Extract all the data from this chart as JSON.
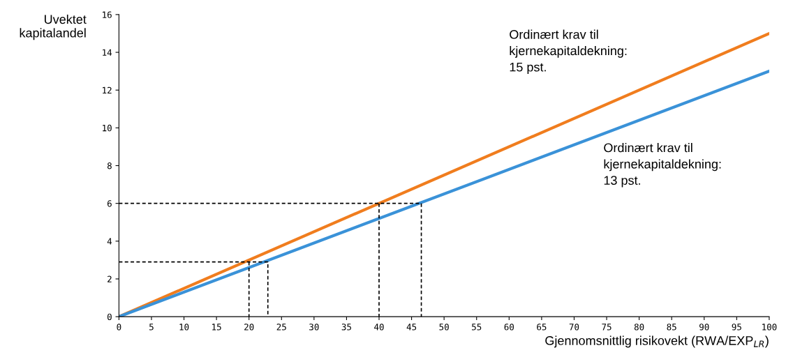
{
  "chart_data": {
    "type": "line",
    "xlabel": "Gjennomsnittlig risikovekt (RWA/EXP$_{LR}$)",
    "ylabel": "Uvektet\nkapitalandel",
    "xlim": [
      0,
      100
    ],
    "xticks": [
      0,
      5,
      10,
      15,
      20,
      25,
      30,
      35,
      40,
      45,
      50,
      55,
      60,
      65,
      70,
      75,
      80,
      85,
      90,
      95,
      100
    ],
    "ylim": [
      0,
      16
    ],
    "yticks": [
      0,
      2,
      4,
      6,
      8,
      10,
      12,
      14,
      16
    ],
    "grid": false,
    "legend": false,
    "marker": "none",
    "series": [
      {
        "color": "#f07d1e",
        "x": [
          0,
          100
        ],
        "values": [
          0,
          15
        ],
        "line_style": "solid"
      },
      {
        "color": "#3a92d8",
        "x": [
          0,
          100
        ],
        "values": [
          0,
          13
        ],
        "line_style": "solid"
      },
      {
        "color": "#000000",
        "x": [
          0,
          46.5,
          46.5
        ],
        "values": [
          6,
          6,
          0
        ],
        "line_style": "dashed"
      },
      {
        "color": "#000000",
        "x": [
          40,
          40
        ],
        "values": [
          6,
          0
        ],
        "line_style": "dashed"
      },
      {
        "color": "#000000",
        "x": [
          0,
          22.9,
          22.9
        ],
        "values": [
          2.9,
          2.9,
          0
        ],
        "line_style": "dashed"
      },
      {
        "color": "#000000",
        "x": [
          20,
          20
        ],
        "values": [
          2.9,
          0
        ],
        "line_style": "dashed"
      }
    ],
    "annotations": [
      "Ordinært krav til\nkjernekapitaldekning:\n15 pst.",
      "Ordinært krav til\nkjernekapitaldekning:\n13 pst."
    ]
  }
}
